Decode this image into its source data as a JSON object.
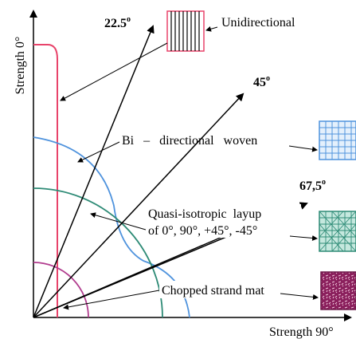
{
  "axes": {
    "y_label": "Strength 0°",
    "x_label": "Strength 90°"
  },
  "angles": {
    "a22": {
      "deg": "22.5",
      "suffix": "o"
    },
    "a45": {
      "deg": "45",
      "suffix": "o"
    },
    "a67": {
      "deg": "67,5",
      "suffix": "o"
    }
  },
  "labels": {
    "unidirectional": "Unidirectional",
    "bidirectional_woven": "Bi   –   directional   woven",
    "quasi_line1": "Quasi-isotropic  layup",
    "quasi_line2": "of 0°, 90°, +45°, -45°",
    "chopped": "Chopped strand mat"
  },
  "colors": {
    "unidirectional": "#e8436a",
    "bidirectional": "#4f93dd",
    "quasi": "#2e8b76",
    "chopped": "#b13c8e",
    "axis": "#000000"
  }
}
